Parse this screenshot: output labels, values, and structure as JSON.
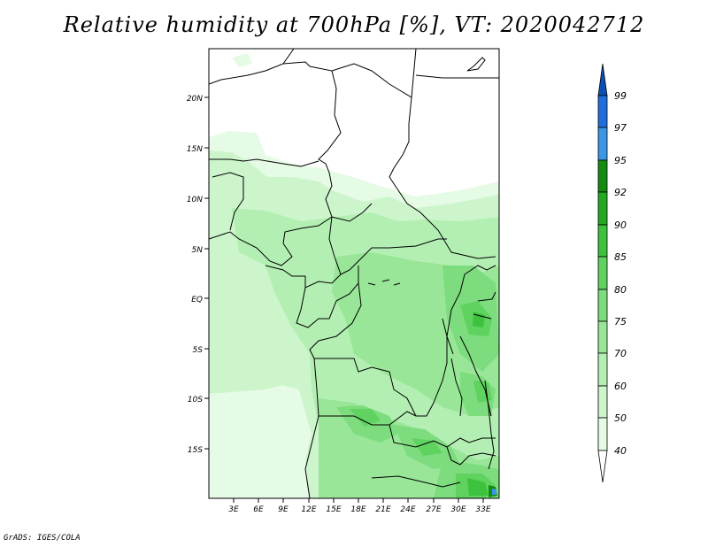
{
  "title": "Relative humidity at 700hPa [%], VT: 2020042712",
  "credit": "GrADS: IGES/COLA",
  "map": {
    "lat_labels": [
      "20N",
      "15N",
      "10N",
      "5N",
      "EQ",
      "5S",
      "10S",
      "15S"
    ],
    "lon_labels": [
      "3E",
      "6E",
      "9E",
      "12E",
      "15E",
      "18E",
      "21E",
      "24E",
      "27E",
      "30E",
      "33E"
    ]
  },
  "colorbar": {
    "levels": [
      "40",
      "50",
      "60",
      "70",
      "75",
      "80",
      "85",
      "90",
      "92",
      "95",
      "97",
      "99"
    ],
    "colors": [
      "#ffffff",
      "#e6fbe6",
      "#ccf5cc",
      "#b3efb3",
      "#99e699",
      "#7ddc7d",
      "#5fd25f",
      "#3cc23c",
      "#22a822",
      "#118c11",
      "#3c96e6",
      "#1e6edc",
      "#0a50b4"
    ]
  }
}
